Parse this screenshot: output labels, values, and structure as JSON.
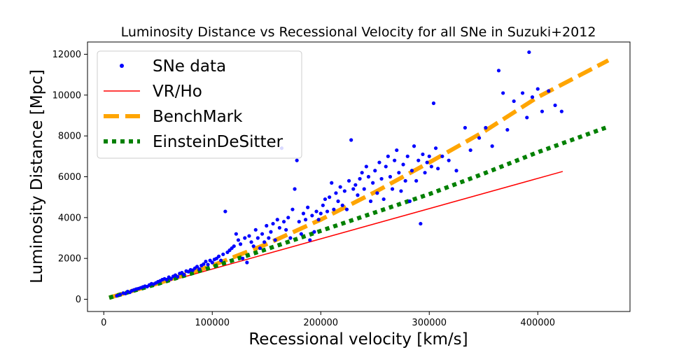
{
  "chart_data": {
    "type": "scatter",
    "title": "Luminosity Distance vs Recessional Velocity for all SNe  in Suzuki+2012",
    "xlabel": "Recessional velocity [km/s]",
    "ylabel": "Luminosity Distance [Mpc]",
    "xlim": [
      -15000,
      485000
    ],
    "ylim": [
      -600,
      12600
    ],
    "xticks": [
      0,
      100000,
      200000,
      300000,
      400000
    ],
    "yticks": [
      0,
      2000,
      4000,
      6000,
      8000,
      10000,
      12000
    ],
    "xtick_labels": [
      "0",
      "100000",
      "200000",
      "300000",
      "400000"
    ],
    "ytick_labels": [
      "0",
      "2000",
      "4000",
      "6000",
      "8000",
      "10000",
      "12000"
    ],
    "legend_position": "top-left",
    "grid": false,
    "series": [
      {
        "name": "SNe data",
        "kind": "points",
        "color": "#0000ff",
        "points": [
          [
            12000,
            170
          ],
          [
            15000,
            230
          ],
          [
            18000,
            300
          ],
          [
            20000,
            280
          ],
          [
            22000,
            380
          ],
          [
            24000,
            340
          ],
          [
            26000,
            420
          ],
          [
            28000,
            460
          ],
          [
            30000,
            500
          ],
          [
            32000,
            520
          ],
          [
            34000,
            560
          ],
          [
            36000,
            600
          ],
          [
            38000,
            640
          ],
          [
            40000,
            620
          ],
          [
            42000,
            700
          ],
          [
            44000,
            760
          ],
          [
            46000,
            740
          ],
          [
            48000,
            800
          ],
          [
            50000,
            860
          ],
          [
            52000,
            900
          ],
          [
            54000,
            960
          ],
          [
            56000,
            1000
          ],
          [
            58000,
            960
          ],
          [
            60000,
            1080
          ],
          [
            62000,
            1000
          ],
          [
            64000,
            1120
          ],
          [
            66000,
            1180
          ],
          [
            68000,
            1100
          ],
          [
            70000,
            1260
          ],
          [
            72000,
            1300
          ],
          [
            74000,
            1200
          ],
          [
            76000,
            1380
          ],
          [
            78000,
            1350
          ],
          [
            80000,
            1440
          ],
          [
            82000,
            1420
          ],
          [
            84000,
            1520
          ],
          [
            86000,
            1600
          ],
          [
            88000,
            1480
          ],
          [
            90000,
            1650
          ],
          [
            92000,
            1720
          ],
          [
            94000,
            1850
          ],
          [
            96000,
            1700
          ],
          [
            98000,
            1900
          ],
          [
            100000,
            1800
          ],
          [
            102000,
            1950
          ],
          [
            104000,
            2000
          ],
          [
            106000,
            2100
          ],
          [
            108000,
            1900
          ],
          [
            110000,
            2200
          ],
          [
            112000,
            4300
          ],
          [
            114000,
            2300
          ],
          [
            116000,
            2400
          ],
          [
            118000,
            2500
          ],
          [
            120000,
            2600
          ],
          [
            122000,
            3200
          ],
          [
            124000,
            2900
          ],
          [
            126000,
            2700
          ],
          [
            128000,
            2000
          ],
          [
            130000,
            3000
          ],
          [
            132000,
            1800
          ],
          [
            134000,
            3100
          ],
          [
            136000,
            2800
          ],
          [
            138000,
            2600
          ],
          [
            140000,
            3400
          ],
          [
            142000,
            3000
          ],
          [
            144000,
            2500
          ],
          [
            146000,
            3200
          ],
          [
            148000,
            2800
          ],
          [
            150000,
            3600
          ],
          [
            152000,
            3000
          ],
          [
            154000,
            3300
          ],
          [
            156000,
            3700
          ],
          [
            158000,
            2900
          ],
          [
            160000,
            3900
          ],
          [
            162000,
            3500
          ],
          [
            164000,
            7400
          ],
          [
            166000,
            3800
          ],
          [
            168000,
            3400
          ],
          [
            170000,
            4000
          ],
          [
            172000,
            3000
          ],
          [
            174000,
            4400
          ],
          [
            176000,
            5400
          ],
          [
            178000,
            6800
          ],
          [
            180000,
            3800
          ],
          [
            182000,
            3200
          ],
          [
            184000,
            4200
          ],
          [
            186000,
            3900
          ],
          [
            188000,
            4500
          ],
          [
            190000,
            2900
          ],
          [
            192000,
            4100
          ],
          [
            194000,
            3300
          ],
          [
            196000,
            4300
          ],
          [
            198000,
            3900
          ],
          [
            200000,
            4200
          ],
          [
            202000,
            4600
          ],
          [
            204000,
            4900
          ],
          [
            206000,
            4300
          ],
          [
            208000,
            5000
          ],
          [
            210000,
            5700
          ],
          [
            212000,
            4400
          ],
          [
            214000,
            5200
          ],
          [
            216000,
            4800
          ],
          [
            218000,
            5500
          ],
          [
            220000,
            4600
          ],
          [
            222000,
            5300
          ],
          [
            224000,
            4400
          ],
          [
            226000,
            5800
          ],
          [
            228000,
            7800
          ],
          [
            230000,
            5400
          ],
          [
            232000,
            5600
          ],
          [
            234000,
            5100
          ],
          [
            236000,
            5900
          ],
          [
            238000,
            6200
          ],
          [
            240000,
            5400
          ],
          [
            242000,
            6500
          ],
          [
            244000,
            6000
          ],
          [
            246000,
            4800
          ],
          [
            248000,
            5700
          ],
          [
            250000,
            6300
          ],
          [
            252000,
            5200
          ],
          [
            254000,
            6700
          ],
          [
            256000,
            5900
          ],
          [
            258000,
            4900
          ],
          [
            260000,
            6500
          ],
          [
            262000,
            7000
          ],
          [
            264000,
            6000
          ],
          [
            266000,
            5400
          ],
          [
            268000,
            6800
          ],
          [
            270000,
            7300
          ],
          [
            272000,
            6200
          ],
          [
            274000,
            5300
          ],
          [
            276000,
            6600
          ],
          [
            278000,
            5800
          ],
          [
            280000,
            7000
          ],
          [
            282000,
            4800
          ],
          [
            284000,
            6300
          ],
          [
            286000,
            7500
          ],
          [
            288000,
            5800
          ],
          [
            290000,
            6800
          ],
          [
            292000,
            3700
          ],
          [
            294000,
            7100
          ],
          [
            296000,
            6200
          ],
          [
            298000,
            6700
          ],
          [
            300000,
            7000
          ],
          [
            302000,
            6500
          ],
          [
            304000,
            9600
          ],
          [
            306000,
            7400
          ],
          [
            308000,
            6400
          ],
          [
            312000,
            7000
          ],
          [
            318000,
            6800
          ],
          [
            325000,
            6300
          ],
          [
            333000,
            8400
          ],
          [
            338000,
            7300
          ],
          [
            346000,
            7900
          ],
          [
            352000,
            8400
          ],
          [
            358000,
            7500
          ],
          [
            364000,
            11200
          ],
          [
            368000,
            10100
          ],
          [
            372000,
            8300
          ],
          [
            378000,
            9700
          ],
          [
            386000,
            10100
          ],
          [
            390000,
            8900
          ],
          [
            392000,
            12100
          ],
          [
            395000,
            9900
          ],
          [
            400000,
            10300
          ],
          [
            404000,
            9200
          ],
          [
            410000,
            10200
          ],
          [
            416000,
            9500
          ],
          [
            422000,
            9200
          ]
        ]
      },
      {
        "name": "VR/Ho",
        "kind": "line",
        "color": "#ff0000",
        "x": [
          5000,
          423000
        ],
        "y": [
          74,
          6260
        ]
      },
      {
        "name": "BenchMark",
        "kind": "line",
        "color": "#ffa500",
        "x": [
          5000,
          50000,
          100000,
          150000,
          200000,
          250000,
          300000,
          350000,
          400000,
          465000
        ],
        "y": [
          75,
          780,
          1650,
          2700,
          3900,
          5250,
          6700,
          8200,
          9900,
          11700
        ]
      },
      {
        "name": "EinsteinDeSitter",
        "kind": "line",
        "color": "#008000",
        "x": [
          5000,
          50000,
          100000,
          150000,
          200000,
          250000,
          300000,
          350000,
          400000,
          465000
        ],
        "y": [
          75,
          760,
          1580,
          2450,
          3350,
          4250,
          5150,
          6150,
          7200,
          8450
        ]
      }
    ]
  }
}
